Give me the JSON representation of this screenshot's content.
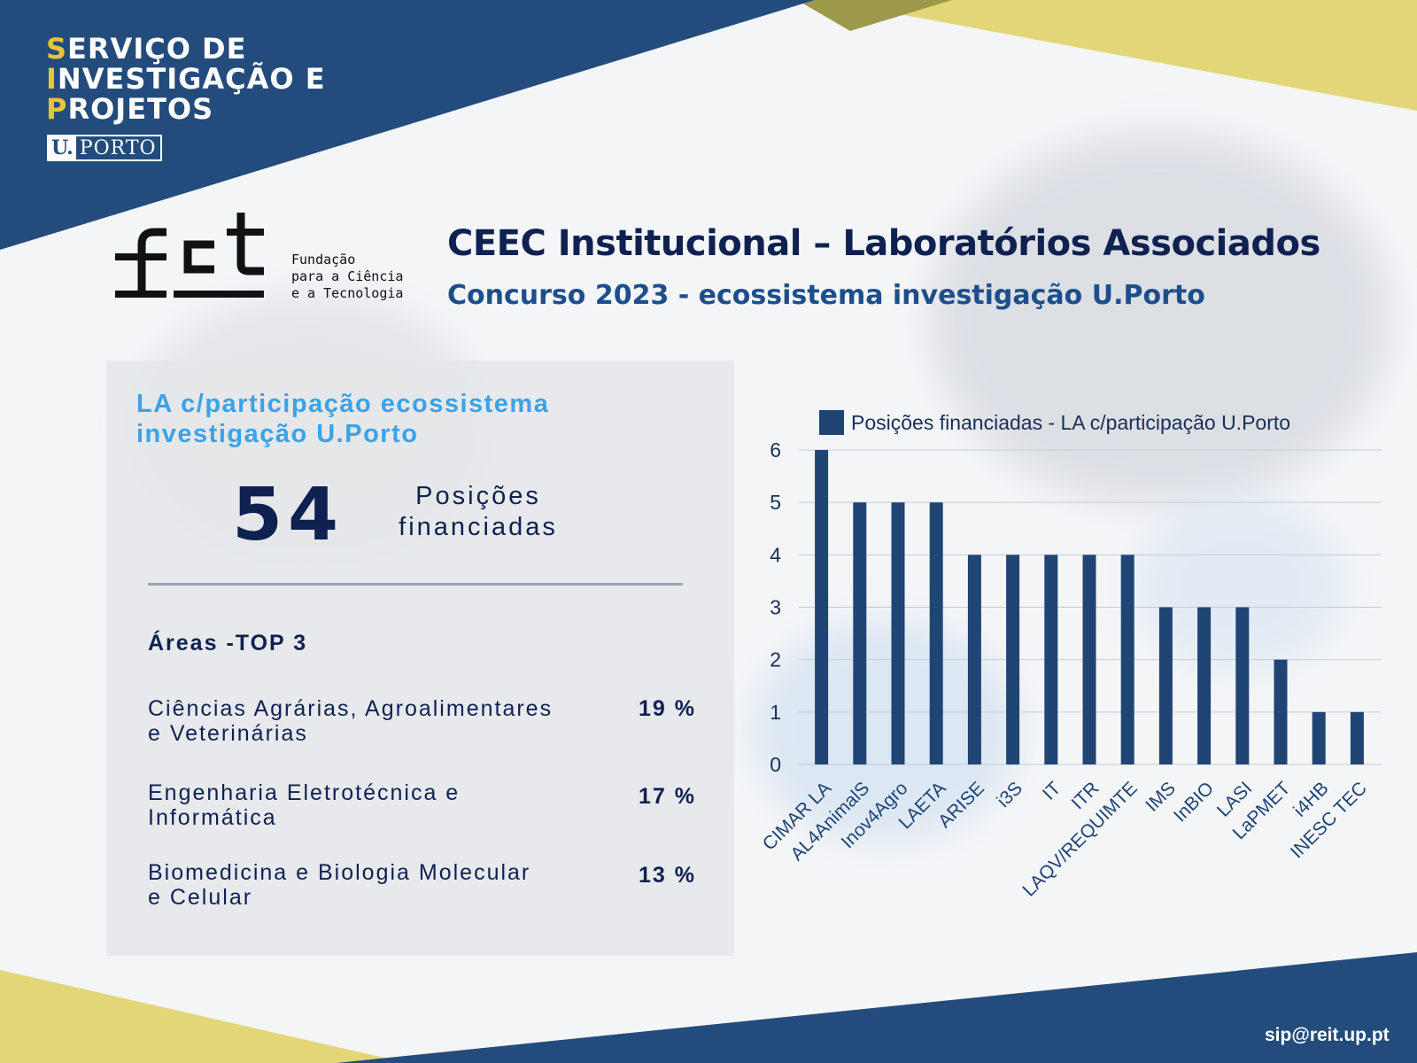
{
  "brand": {
    "line1_first": "S",
    "line1_rest": "ERVIÇO DE",
    "line2_first": "I",
    "line2_rest": "NVESTIGAÇÃO E",
    "line3_first": "P",
    "line3_rest": "ROJETOS",
    "uporto_u": "U.",
    "uporto_p": "PORTO"
  },
  "fct": {
    "logo_text": "fct",
    "line1": "Fundação",
    "line2": "para a Ciência",
    "line3": "e a Tecnologia"
  },
  "header": {
    "title": "CEEC Institucional – Laboratórios Associados",
    "subtitle": "Concurso 2023 - ecossistema investigação U.Porto"
  },
  "panel": {
    "heading_line1": "LA c/participação ecossistema",
    "heading_line2": "investigação U.Porto",
    "total": "54",
    "total_label_line1": "Posições",
    "total_label_line2": "financiadas",
    "areas_title": "Áreas -TOP 3",
    "areas": [
      {
        "line1": "Ciências Agrárias, Agroalimentares",
        "line2": "e Veterinárias",
        "pct": "19 %"
      },
      {
        "line1": "Engenharia Eletrotécnica e",
        "line2": "Informática",
        "pct": "17 %"
      },
      {
        "line1": "Biomedicina e Biologia Molecular",
        "line2": "e Celular",
        "pct": "13 %"
      }
    ]
  },
  "chart_data": {
    "type": "bar",
    "categories": [
      "CIMAR LA",
      "AL4AnimalS",
      "Inov4Agro",
      "LAETA",
      "ARISE",
      "i3S",
      "IT",
      "ITR",
      "LAQV/REQUIMTE",
      "IMS",
      "InBIO",
      "LASI",
      "LaPMET",
      "i4HB",
      "INESC TEC"
    ],
    "series": [
      {
        "name": "Posições financiadas - LA c/participação U.Porto",
        "values": [
          6,
          5,
          5,
          5,
          4,
          4,
          4,
          4,
          4,
          3,
          3,
          3,
          2,
          1,
          1
        ]
      }
    ],
    "ylim": [
      0,
      6
    ],
    "yticks": [
      "0",
      "1",
      "2",
      "3",
      "4",
      "5",
      "6"
    ],
    "grid": true,
    "legend": "top",
    "bar_color": "#1f4575"
  },
  "footer": {
    "email": "sip@reit.up.pt"
  },
  "colors": {
    "navy": "#234c7c",
    "gold": "#e3d677",
    "olive": "#9c9a4a",
    "title": "#0f2150"
  }
}
